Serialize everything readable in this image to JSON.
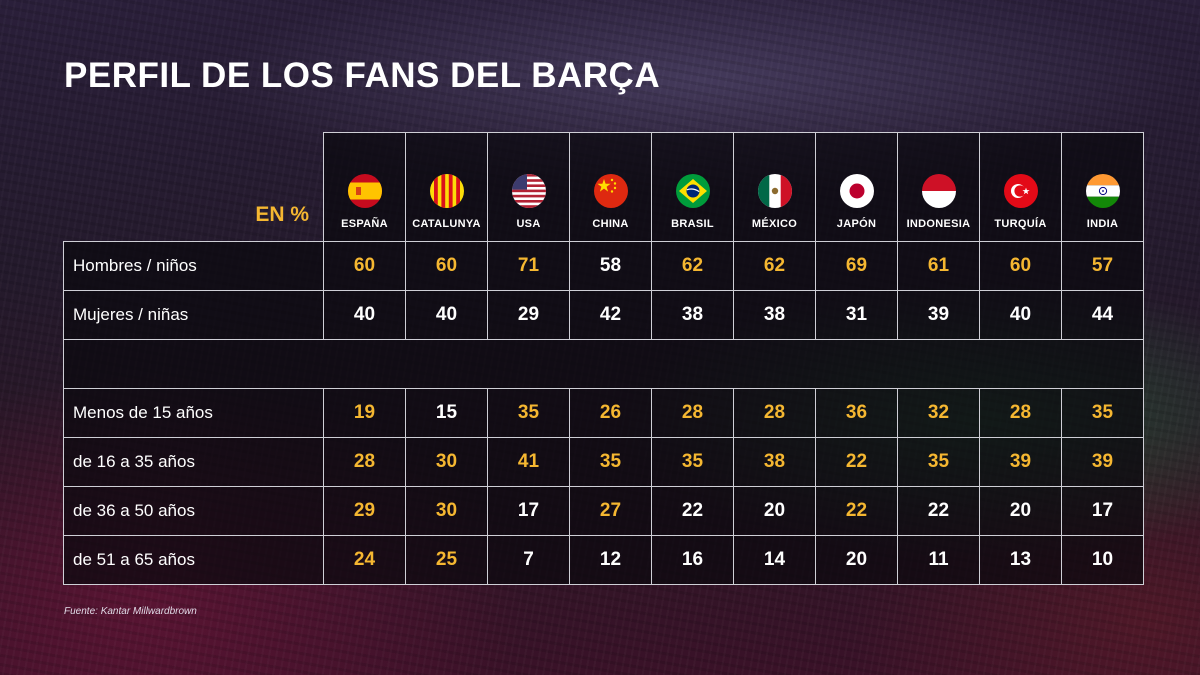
{
  "title": "PERFIL DE LOS FANS DEL BARÇA",
  "unit": "EN %",
  "source": "Fuente: Kantar Millwardbrown",
  "colors": {
    "highlight": "#f5b731",
    "normal": "#ffffff",
    "grid": "#cfcfd6"
  },
  "chart_data": {
    "type": "table",
    "columns": [
      {
        "name": "ESPAÑA",
        "flag": "spain-flag-icon"
      },
      {
        "name": "CATALUNYA",
        "flag": "catalonia-flag-icon"
      },
      {
        "name": "USA",
        "flag": "usa-flag-icon"
      },
      {
        "name": "CHINA",
        "flag": "china-flag-icon"
      },
      {
        "name": "BRASIL",
        "flag": "brazil-flag-icon"
      },
      {
        "name": "MÉXICO",
        "flag": "mexico-flag-icon"
      },
      {
        "name": "JAPÓN",
        "flag": "japan-flag-icon"
      },
      {
        "name": "INDONESIA",
        "flag": "indonesia-flag-icon"
      },
      {
        "name": "TURQUÍA",
        "flag": "turkey-flag-icon"
      },
      {
        "name": "INDIA",
        "flag": "india-flag-icon"
      }
    ],
    "groups": [
      {
        "rows": [
          {
            "label": "Hombres / niños",
            "values": [
              60,
              60,
              71,
              58,
              62,
              62,
              69,
              61,
              60,
              57
            ],
            "highlighted": [
              true,
              true,
              true,
              false,
              true,
              true,
              true,
              true,
              true,
              true
            ]
          },
          {
            "label": "Mujeres / niñas",
            "values": [
              40,
              40,
              29,
              42,
              38,
              38,
              31,
              39,
              40,
              44
            ],
            "highlighted": [
              false,
              false,
              false,
              false,
              false,
              false,
              false,
              false,
              false,
              false
            ]
          }
        ]
      },
      {
        "rows": [
          {
            "label": "Menos de 15 años",
            "values": [
              19,
              15,
              35,
              26,
              28,
              28,
              36,
              32,
              28,
              35
            ],
            "highlighted": [
              true,
              false,
              true,
              true,
              true,
              true,
              true,
              true,
              true,
              true
            ]
          },
          {
            "label": "de 16 a 35 años",
            "values": [
              28,
              30,
              41,
              35,
              35,
              38,
              22,
              35,
              39,
              39
            ],
            "highlighted": [
              true,
              true,
              true,
              true,
              true,
              true,
              true,
              true,
              true,
              true
            ]
          },
          {
            "label": "de 36 a 50 años",
            "values": [
              29,
              30,
              17,
              27,
              22,
              20,
              22,
              22,
              20,
              17
            ],
            "highlighted": [
              true,
              true,
              false,
              true,
              false,
              false,
              true,
              false,
              false,
              false
            ]
          },
          {
            "label": "de 51 a 65 años",
            "values": [
              24,
              25,
              7,
              12,
              16,
              14,
              20,
              11,
              13,
              10
            ],
            "highlighted": [
              true,
              true,
              false,
              false,
              false,
              false,
              false,
              false,
              false,
              false
            ]
          }
        ]
      }
    ]
  }
}
